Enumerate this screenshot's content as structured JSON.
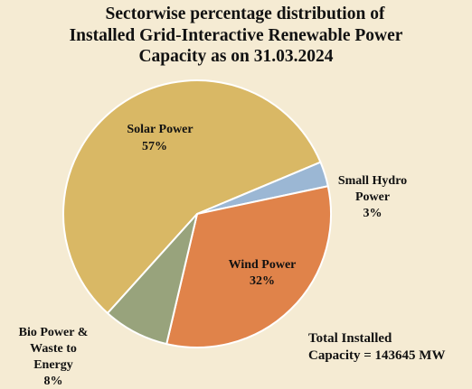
{
  "chart_data": {
    "type": "pie",
    "title": "Sectorwise percentage distribution of Installed Grid-Interactive Renewable Power Capacity as on 31.03.2024",
    "title_lines": [
      "Sectorwise percentage distribution of",
      "Installed Grid-Interactive Renewable Power",
      "Capacity as on 31.03.2024"
    ],
    "slices": [
      {
        "label": "Solar Power",
        "label_lines": [
          "Solar Power"
        ],
        "value": 57,
        "value_text": "57%",
        "color": "#d9b865"
      },
      {
        "label": "Small Hydro Power",
        "label_lines": [
          "Small Hydro",
          "Power"
        ],
        "value": 3,
        "value_text": "3%",
        "color": "#9bb7d4"
      },
      {
        "label": "Wind Power",
        "label_lines": [
          "Wind Power"
        ],
        "value": 32,
        "value_text": "32%",
        "color": "#e0834a"
      },
      {
        "label": "Bio Power & Waste to Energy",
        "label_lines": [
          "Bio Power &",
          "Waste to",
          "Energy"
        ],
        "value": 8,
        "value_text": "8%",
        "color": "#98a37c"
      }
    ],
    "annotation_lines": [
      "Total Installed",
      "Capacity = 143645 MW"
    ]
  }
}
